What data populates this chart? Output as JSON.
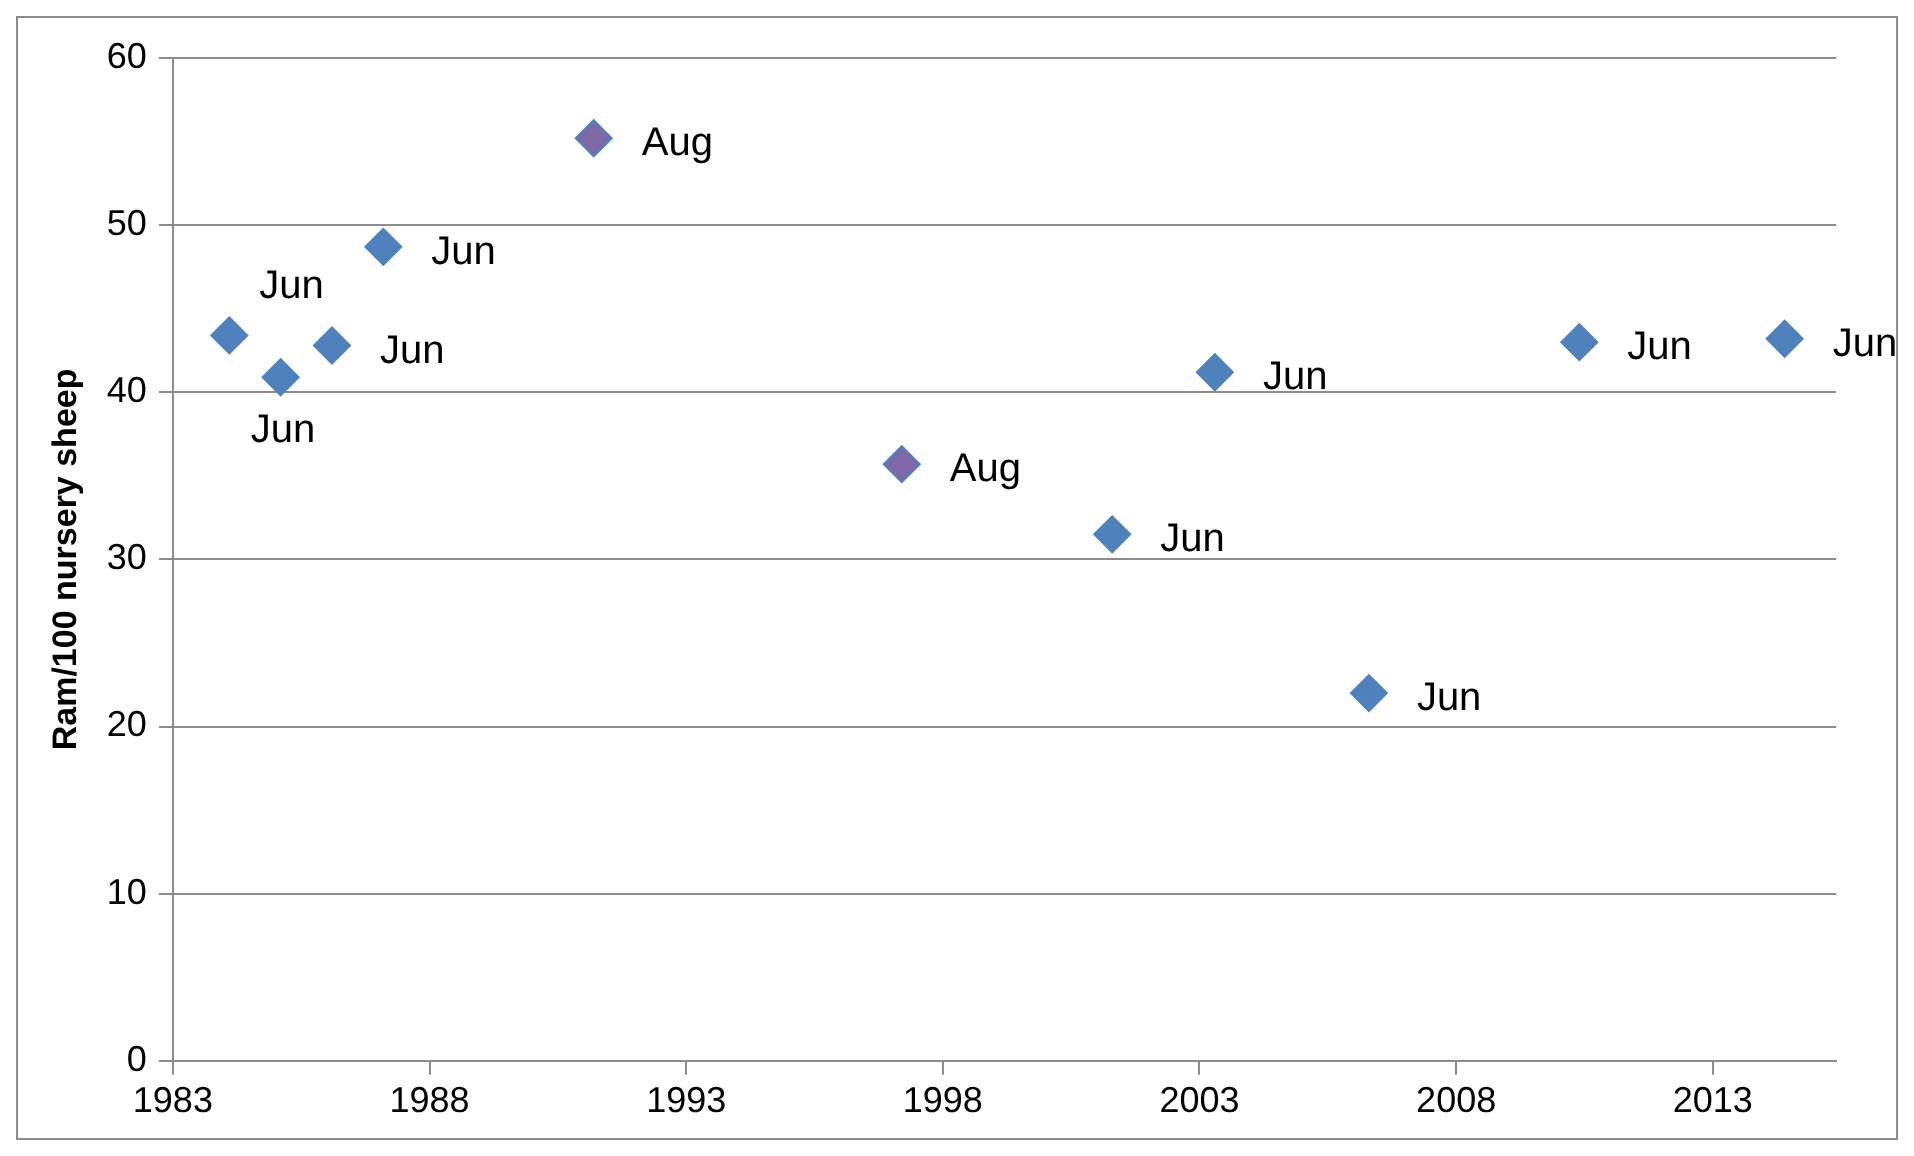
{
  "chart_data": {
    "type": "scatter",
    "ylabel": "Ram/100 nursery sheep",
    "x": [
      1984.1,
      1985.1,
      1986.1,
      1987.1,
      1991.2,
      1997.2,
      2001.3,
      2003.3,
      2006.3,
      2010.4,
      2014.4
    ],
    "values": [
      43.4,
      40.9,
      42.8,
      48.7,
      55.2,
      35.7,
      31.5,
      41.2,
      22,
      43,
      43.2
    ],
    "colors": [
      "#4f81bd",
      "#4f81bd",
      "#4f81bd",
      "#4f81bd",
      "#7f68a6",
      "#7f68a6",
      "#4f81bd",
      "#4f81bd",
      "#4f81bd",
      "#4f81bd",
      "#4f81bd"
    ],
    "marker": "diamond",
    "xlim": [
      1983,
      2015.4
    ],
    "xticks": [
      1983,
      1988,
      1993,
      1998,
      2003,
      2008,
      2013
    ],
    "ylim": [
      0,
      60
    ],
    "yticks": [
      0,
      10,
      20,
      30,
      40,
      50,
      60
    ],
    "grid": "y",
    "legend": false,
    "annotations": [
      {
        "text": "Jun",
        "x": 1984.1,
        "y": 43.4
      },
      {
        "text": "Jun",
        "x": 1985.1,
        "y": 40.9
      },
      {
        "text": "Jun",
        "x": 1986.1,
        "y": 42.8
      },
      {
        "text": "Jun",
        "x": 1987.1,
        "y": 48.7
      },
      {
        "text": "Aug",
        "x": 1991.2,
        "y": 55.2
      },
      {
        "text": "Aug",
        "x": 1997.2,
        "y": 35.7
      },
      {
        "text": "Jun",
        "x": 2001.3,
        "y": 31.5
      },
      {
        "text": "Jun",
        "x": 2003.3,
        "y": 41.2
      },
      {
        "text": "Jun",
        "x": 2006.3,
        "y": 22
      },
      {
        "text": "Jun",
        "x": 2010.4,
        "y": 43
      },
      {
        "text": "Jun",
        "x": 2014.4,
        "y": 43.2
      }
    ]
  }
}
